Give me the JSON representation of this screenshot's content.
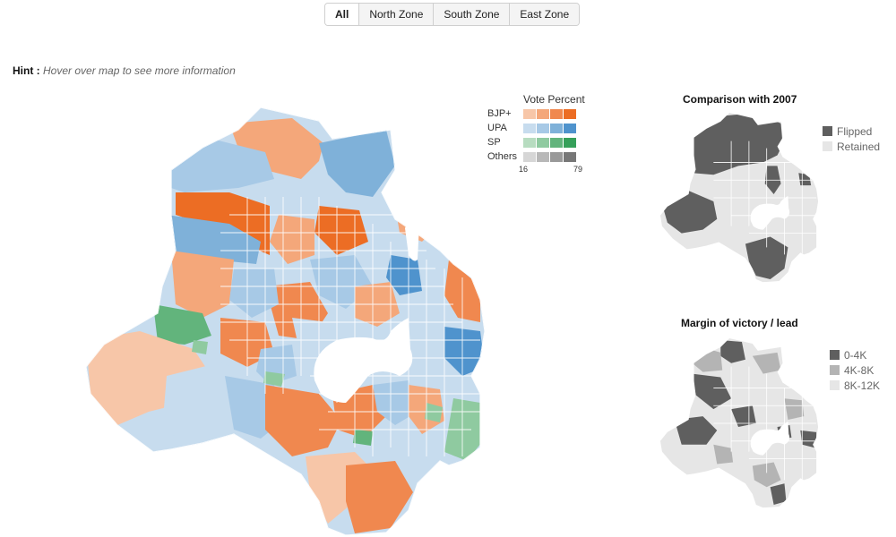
{
  "zone_tabs": [
    {
      "label": "All",
      "active": true
    },
    {
      "label": "North Zone",
      "active": false
    },
    {
      "label": "South Zone",
      "active": false
    },
    {
      "label": "East Zone",
      "active": false
    }
  ],
  "hint": {
    "label": "Hint :",
    "text": "Hover over map to see more information"
  },
  "vote_legend": {
    "title": "Vote Percent",
    "parties": [
      {
        "name": "BJP+",
        "colors": [
          "#f7c6a8",
          "#f4a77a",
          "#f0884f",
          "#ec6d24"
        ]
      },
      {
        "name": "UPA",
        "colors": [
          "#c7dcee",
          "#a7c9e6",
          "#7fb1d9",
          "#4f93cd"
        ]
      },
      {
        "name": "SP",
        "colors": [
          "#b7dcc0",
          "#8fcaa0",
          "#62b47c",
          "#36a05a"
        ]
      },
      {
        "name": "Others",
        "colors": [
          "#d6d6d6",
          "#b8b8b8",
          "#999999",
          "#777777"
        ]
      }
    ],
    "min": "16",
    "max": "79"
  },
  "comparison": {
    "title": "Comparison with 2007",
    "legend": [
      {
        "label": "Flipped",
        "color": "#5f5f5f"
      },
      {
        "label": "Retained",
        "color": "#e6e6e6"
      }
    ]
  },
  "margin": {
    "title": "Margin of victory / lead",
    "legend": [
      {
        "label": "0-4K",
        "color": "#5f5f5f"
      },
      {
        "label": "4K-8K",
        "color": "#b4b4b4"
      },
      {
        "label": "8K-12K",
        "color": "#e6e6e6"
      }
    ]
  }
}
